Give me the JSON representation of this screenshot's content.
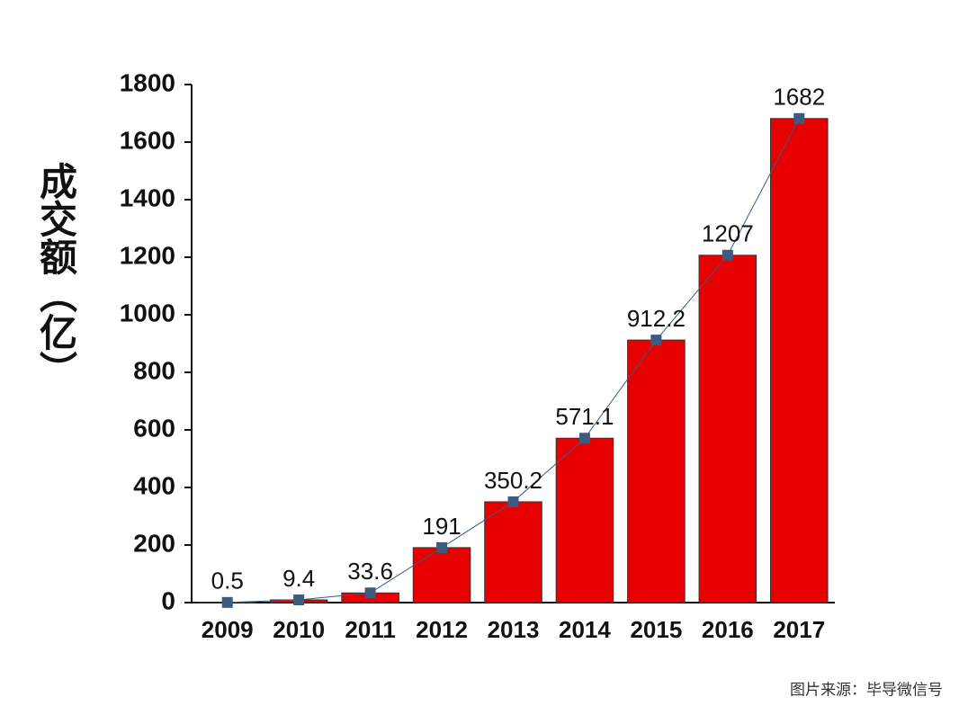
{
  "chart_data": {
    "type": "bar",
    "ylabel": "成交额（亿）",
    "source": "图片来源：毕导微信号",
    "categories": [
      "2009",
      "2010",
      "2011",
      "2012",
      "2013",
      "2014",
      "2015",
      "2016",
      "2017"
    ],
    "values": [
      0.5,
      9.4,
      33.6,
      191,
      350.2,
      571.1,
      912.2,
      1207,
      1682
    ],
    "color": "#e80000",
    "line_color": "#3d5a80",
    "ylim": [
      0,
      1800
    ],
    "yticks": [
      0,
      200,
      400,
      600,
      800,
      1000,
      1200,
      1400,
      1600,
      1800
    ]
  }
}
